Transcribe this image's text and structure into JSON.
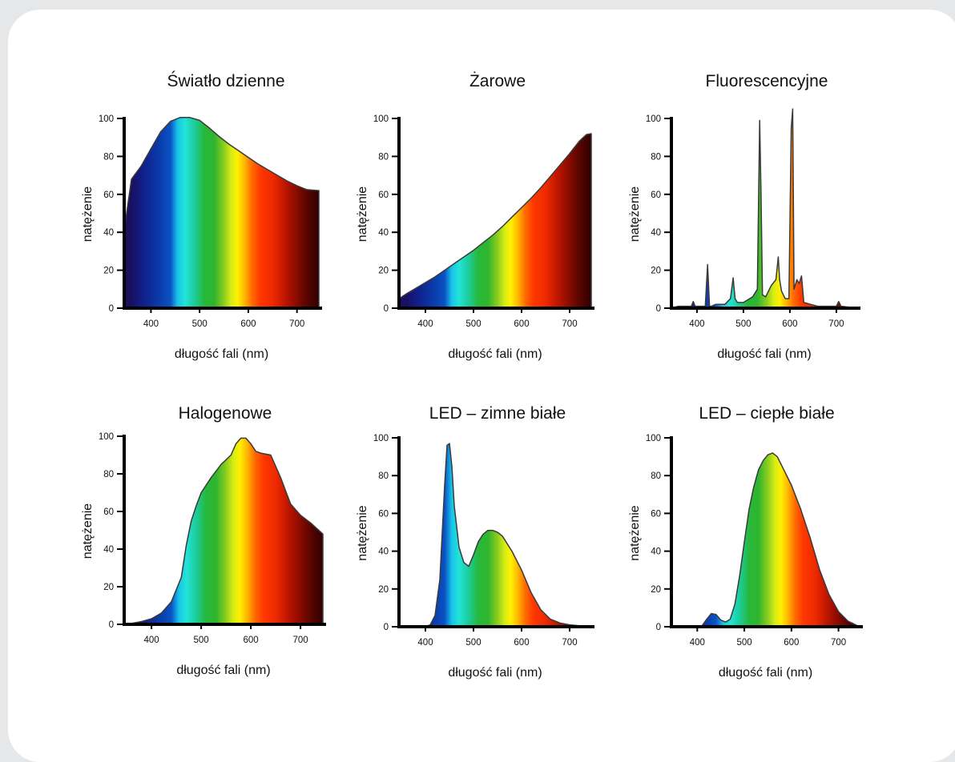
{
  "chart_data": [
    {
      "type": "area",
      "title": "Światło dzienne",
      "xlabel": "długość fali (nm)",
      "ylabel": "natężenie",
      "xlim": [
        345,
        745
      ],
      "ylim": [
        0,
        100
      ],
      "xticks": [
        400,
        500,
        600,
        700
      ],
      "yticks": [
        0,
        20,
        40,
        60,
        80,
        100
      ],
      "x": [
        345,
        350,
        360,
        380,
        400,
        420,
        440,
        460,
        480,
        500,
        520,
        540,
        560,
        580,
        600,
        620,
        640,
        660,
        680,
        700,
        720,
        745
      ],
      "y": [
        40,
        50,
        68,
        75,
        84,
        93,
        98.5,
        100.5,
        100.5,
        99,
        95,
        90.5,
        86.5,
        83,
        79.5,
        76,
        73,
        70,
        67,
        64.5,
        62.5,
        62
      ]
    },
    {
      "type": "area",
      "title": "Żarowe",
      "xlabel": "długość fali (nm)",
      "ylabel": "natężenie",
      "xlim": [
        345,
        745
      ],
      "ylim": [
        0,
        100
      ],
      "xticks": [
        400,
        500,
        600,
        700
      ],
      "yticks": [
        0,
        20,
        40,
        60,
        80,
        100
      ],
      "x": [
        345,
        360,
        380,
        400,
        420,
        440,
        460,
        480,
        500,
        520,
        540,
        560,
        580,
        600,
        620,
        640,
        660,
        680,
        700,
        720,
        735,
        745
      ],
      "y": [
        5,
        7.5,
        10.5,
        13.5,
        16.5,
        20,
        23.5,
        27,
        30.5,
        34.5,
        38.5,
        43,
        48,
        53,
        58,
        63.5,
        69.5,
        75.5,
        81.5,
        88,
        91.5,
        92
      ]
    },
    {
      "type": "area",
      "title": "Fluorescencyjne",
      "xlabel": "długość fali (nm)",
      "ylabel": "natężenie",
      "xlim": [
        345,
        745
      ],
      "ylim": [
        0,
        100
      ],
      "xticks": [
        400,
        500,
        600,
        700
      ],
      "yticks": [
        0,
        20,
        40,
        60,
        80,
        100
      ],
      "x": [
        345,
        360,
        380,
        388,
        392,
        396,
        400,
        418,
        423,
        427,
        431,
        440,
        460,
        472,
        478,
        482,
        487,
        500,
        520,
        530,
        535,
        538,
        541,
        548,
        560,
        570,
        575,
        578,
        582,
        590,
        598,
        603,
        606,
        609,
        615,
        620,
        625,
        630,
        645,
        660,
        680,
        700,
        705,
        710,
        745
      ],
      "y": [
        0,
        1,
        1,
        1,
        3.5,
        1,
        1,
        1,
        23,
        1,
        1,
        2,
        2,
        5,
        16,
        5,
        3,
        3,
        6,
        10,
        99,
        60,
        7,
        6,
        12,
        15,
        27,
        15,
        9,
        5,
        5,
        95,
        105,
        10,
        15,
        13,
        17,
        3,
        2,
        1,
        1,
        1,
        3.5,
        1,
        0
      ]
    },
    {
      "type": "area",
      "title": "Halogenowe",
      "xlabel": "długość fali (nm)",
      "ylabel": "natężenie",
      "xlim": [
        345,
        745
      ],
      "ylim": [
        0,
        100
      ],
      "xticks": [
        400,
        500,
        600,
        700
      ],
      "yticks": [
        0,
        20,
        40,
        60,
        80,
        100
      ],
      "x": [
        345,
        360,
        380,
        400,
        420,
        440,
        460,
        470,
        480,
        490,
        500,
        520,
        540,
        560,
        570,
        580,
        590,
        600,
        610,
        620,
        640,
        660,
        680,
        700,
        720,
        745
      ],
      "y": [
        0,
        0.5,
        1.5,
        3,
        6,
        12,
        25,
        42,
        55,
        63,
        70,
        78,
        85,
        90,
        96,
        99,
        99,
        96,
        92,
        91,
        90,
        78,
        64,
        58,
        54,
        48
      ]
    },
    {
      "type": "area",
      "title": "LED – zimne białe",
      "xlabel": "długość fali (nm)",
      "ylabel": "natężenie",
      "xlim": [
        345,
        745
      ],
      "ylim": [
        0,
        100
      ],
      "xticks": [
        400,
        500,
        600,
        700
      ],
      "yticks": [
        0,
        20,
        40,
        60,
        80,
        100
      ],
      "x": [
        345,
        400,
        410,
        420,
        430,
        440,
        445,
        450,
        455,
        460,
        470,
        480,
        490,
        500,
        510,
        520,
        530,
        540,
        550,
        560,
        580,
        600,
        620,
        640,
        660,
        680,
        700,
        720,
        745
      ],
      "y": [
        0,
        0,
        1,
        6,
        25,
        75,
        96,
        97,
        85,
        64,
        42,
        34,
        32,
        38,
        45,
        49,
        51,
        51,
        50,
        48,
        40,
        30,
        18,
        9,
        4,
        2,
        1,
        0.5,
        0
      ]
    },
    {
      "type": "area",
      "title": "LED – ciepłe białe",
      "xlabel": "długość fali (nm)",
      "ylabel": "natężenie",
      "xlim": [
        345,
        745
      ],
      "ylim": [
        0,
        100
      ],
      "xticks": [
        400,
        500,
        600,
        700
      ],
      "yticks": [
        0,
        20,
        40,
        60,
        80,
        100
      ],
      "x": [
        345,
        400,
        410,
        420,
        430,
        440,
        450,
        460,
        470,
        480,
        490,
        500,
        510,
        520,
        530,
        540,
        550,
        560,
        570,
        580,
        600,
        620,
        640,
        660,
        680,
        700,
        720,
        745
      ],
      "y": [
        0,
        0,
        0.5,
        4,
        7,
        6.5,
        3.5,
        2.5,
        4,
        12,
        27,
        45,
        62,
        74,
        83,
        88,
        91,
        92,
        90,
        85,
        75,
        62,
        47,
        30,
        17,
        8,
        3,
        0
      ]
    }
  ]
}
